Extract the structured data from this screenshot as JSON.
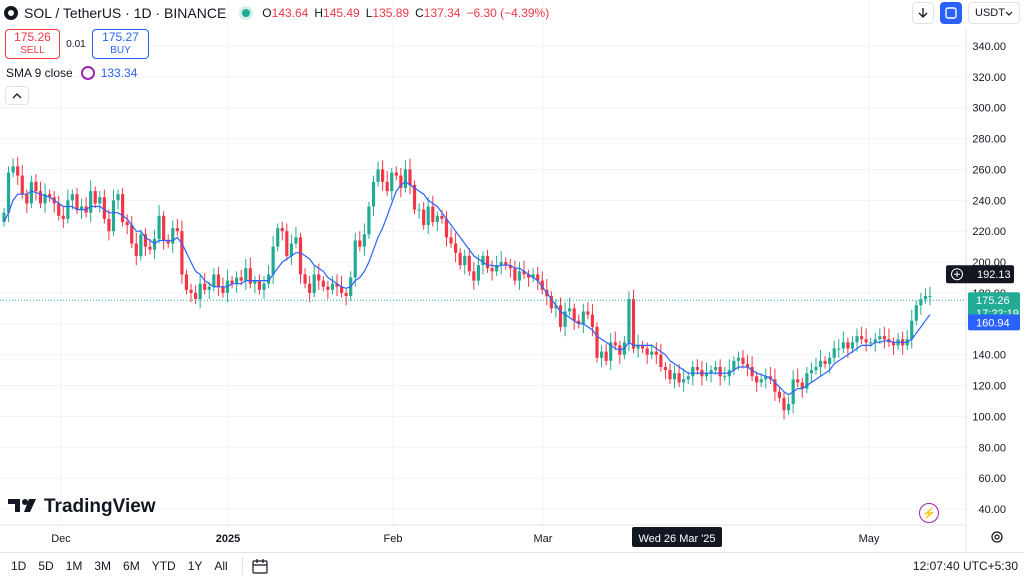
{
  "header": {
    "symbol_title": "SOL / TetherUS · 1D · BINANCE",
    "ohlc": {
      "o_label": "O",
      "o": "143.64",
      "h_label": "H",
      "h": "145.49",
      "l_label": "L",
      "l": "135.89",
      "c_label": "C",
      "c": "137.34",
      "change": "−6.30 (−4.39%)"
    }
  },
  "trade": {
    "sell_price": "175.26",
    "sell_label": "SELL",
    "spread": "0.01",
    "buy_price": "175.27",
    "buy_label": "BUY"
  },
  "indicator": {
    "name": "SMA 9 close",
    "value": "133.34"
  },
  "toolbar": {
    "currency": "USDT"
  },
  "watermark": "TradingView",
  "price_axis": {
    "ticks": [
      "340.00",
      "320.00",
      "300.00",
      "280.00",
      "260.00",
      "240.00",
      "220.00",
      "200.00",
      "180.00",
      "160.00",
      "140.00",
      "120.00",
      "100.00",
      "80.00",
      "60.00",
      "40.00"
    ],
    "crosshair_label": "192.13",
    "last_price_label": "175.26",
    "countdown_label": "17:22:19",
    "sma_label": "160.94"
  },
  "time_axis": {
    "labels": [
      "Dec",
      "2025",
      "Feb",
      "Mar",
      "May"
    ],
    "crosshair_label": "Wed 26 Mar '25"
  },
  "bottom_bar": {
    "ranges": [
      "1D",
      "5D",
      "1M",
      "3M",
      "6M",
      "YTD",
      "1Y",
      "All"
    ],
    "clock": "12:07:40 UTC+5:30"
  },
  "colors": {
    "up": "#22ab94",
    "down": "#f23645",
    "sma": "#2962ff",
    "accent": "#2962ff"
  },
  "chart_data": {
    "type": "candlestick",
    "symbol": "SOL / TetherUS",
    "interval": "1D",
    "ylim": [
      40,
      340
    ],
    "y_scale": "linear",
    "grid": true,
    "x_labels": [
      "Dec",
      "2025",
      "Feb",
      "Mar",
      "May"
    ],
    "closes": [
      232,
      258,
      262,
      256,
      244,
      238,
      252,
      246,
      238,
      244,
      242,
      238,
      230,
      228,
      240,
      244,
      234,
      236,
      232,
      246,
      238,
      242,
      228,
      220,
      240,
      244,
      226,
      224,
      212,
      204,
      218,
      210,
      208,
      215,
      230,
      214,
      212,
      222,
      220,
      192,
      182,
      180,
      176,
      186,
      182,
      184,
      192,
      184,
      180,
      188,
      186,
      190,
      188,
      196,
      186,
      188,
      182,
      186,
      192,
      210,
      222,
      220,
      204,
      212,
      216,
      192,
      186,
      180,
      192,
      188,
      184,
      182,
      186,
      184,
      180,
      178,
      190,
      214,
      210,
      218,
      236,
      252,
      260,
      252,
      246,
      258,
      256,
      248,
      260,
      250,
      234,
      234,
      224,
      236,
      226,
      230,
      228,
      216,
      212,
      206,
      198,
      204,
      194,
      188,
      198,
      204,
      196,
      194,
      198,
      200,
      198,
      196,
      188,
      194,
      192,
      190,
      192,
      188,
      182,
      178,
      170,
      172,
      158,
      168,
      170,
      162,
      160,
      168,
      166,
      158,
      138,
      142,
      136,
      148,
      146,
      140,
      148,
      176,
      144,
      146,
      144,
      140,
      142,
      140,
      132,
      130,
      124,
      128,
      122,
      124,
      126,
      132,
      130,
      126,
      128,
      130,
      132,
      126,
      126,
      130,
      136,
      138,
      134,
      132,
      126,
      122,
      124,
      126,
      124,
      116,
      112,
      104,
      108,
      124,
      122,
      118,
      128,
      130,
      132,
      136,
      134,
      138,
      144,
      144,
      148,
      144,
      148,
      152,
      150,
      148,
      148,
      150,
      152,
      150,
      148,
      146,
      150,
      146,
      150,
      162,
      172,
      176,
      178,
      178
    ],
    "sma9_close": [
      226,
      232,
      240,
      244,
      244,
      244,
      246,
      245,
      244,
      243,
      242,
      240,
      238,
      236,
      236,
      236,
      234,
      234,
      234,
      236,
      236,
      236,
      234,
      232,
      232,
      232,
      230,
      228,
      224,
      220,
      220,
      216,
      214,
      212,
      214,
      214,
      214,
      214,
      216,
      212,
      206,
      200,
      194,
      192,
      188,
      186,
      184,
      184,
      184,
      184,
      186,
      186,
      186,
      188,
      188,
      188,
      188,
      188,
      188,
      192,
      196,
      200,
      202,
      204,
      206,
      206,
      204,
      202,
      198,
      196,
      194,
      190,
      188,
      186,
      184,
      183,
      184,
      188,
      190,
      194,
      200,
      208,
      216,
      222,
      230,
      238,
      246,
      250,
      252,
      250,
      248,
      246,
      244,
      240,
      238,
      236,
      232,
      228,
      224,
      220,
      216,
      212,
      208,
      204,
      202,
      200,
      198,
      198,
      197,
      198,
      198,
      198,
      196,
      196,
      194,
      192,
      190,
      188,
      184,
      180,
      176,
      172,
      168,
      166,
      164,
      162,
      160,
      160,
      158,
      156,
      152,
      150,
      148,
      146,
      144,
      143,
      144,
      148,
      146,
      146,
      146,
      146,
      146,
      144,
      142,
      140,
      136,
      134,
      132,
      130,
      128,
      128,
      128,
      128,
      128,
      128,
      128,
      128,
      128,
      128,
      130,
      132,
      132,
      132,
      130,
      128,
      127,
      126,
      125,
      122,
      119,
      116,
      114,
      116,
      118,
      118,
      120,
      122,
      124,
      126,
      128,
      130,
      134,
      136,
      138,
      140,
      142,
      144,
      146,
      146,
      146,
      148,
      148,
      149,
      149,
      148,
      148,
      148,
      148,
      150,
      154,
      158,
      162,
      166
    ]
  }
}
